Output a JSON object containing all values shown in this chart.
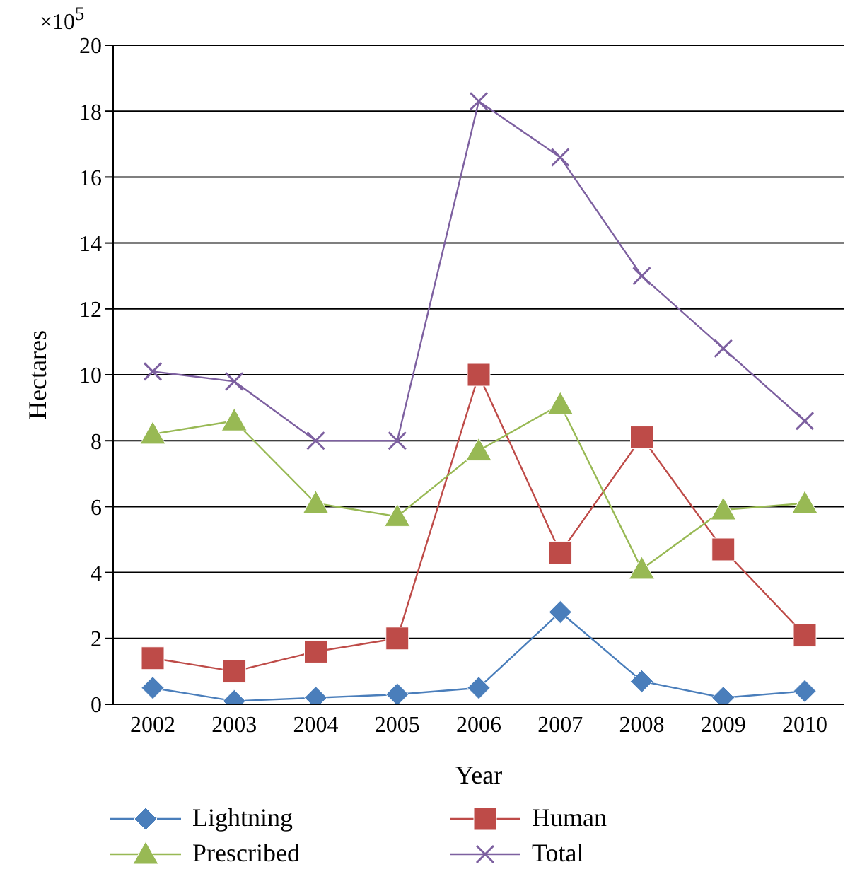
{
  "chart_data": {
    "type": "line",
    "xlabel": "Year",
    "ylabel": "Hectares",
    "annotations": [
      "×10$^{5}$"
    ],
    "categories": [
      "2002",
      "2003",
      "2004",
      "2005",
      "2006",
      "2007",
      "2008",
      "2009",
      "2010"
    ],
    "series": [
      {
        "name": "Lightning",
        "color": "#4a7ebb",
        "marker": "diamond",
        "values": [
          0.5,
          0.1,
          0.2,
          0.3,
          0.5,
          2.8,
          0.7,
          0.2,
          0.4
        ]
      },
      {
        "name": "Human",
        "color": "#be4b48",
        "marker": "square",
        "values": [
          1.4,
          1.0,
          1.6,
          2.0,
          10.0,
          4.6,
          8.1,
          4.7,
          2.1
        ]
      },
      {
        "name": "Prescribed",
        "color": "#98b954",
        "marker": "triangle",
        "values": [
          8.2,
          8.6,
          6.1,
          5.7,
          7.7,
          9.1,
          4.1,
          5.9,
          6.1
        ]
      },
      {
        "name": "Total",
        "color": "#7d60a0",
        "marker": "cross",
        "values": [
          10.1,
          9.8,
          8.0,
          8.0,
          18.3,
          16.6,
          13.0,
          10.8,
          8.6
        ]
      }
    ],
    "ylim": [
      0,
      20
    ],
    "yticks": [
      0,
      2,
      4,
      6,
      8,
      10,
      12,
      14,
      16,
      18,
      20
    ],
    "grid": "y",
    "legend": "bottom"
  }
}
